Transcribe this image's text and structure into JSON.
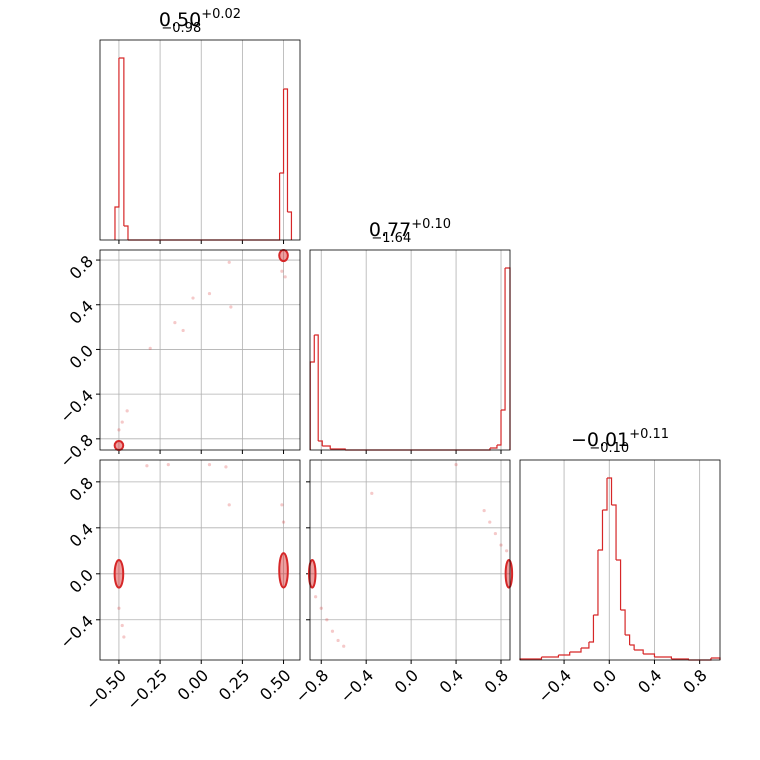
{
  "chart_data": [
    {
      "type": "histogram",
      "title": "0.50",
      "title_upper": "+0.02",
      "title_lower": "−0.98",
      "color": "#d62728",
      "bins": [
        -0.524,
        -0.5,
        -0.47,
        -0.445,
        0.476,
        0.5,
        0.524,
        0.548
      ],
      "counts": [
        33,
        182,
        14,
        0,
        67,
        151,
        28
      ],
      "xlim": [
        -0.615,
        0.6
      ],
      "ylim": [
        0,
        200
      ],
      "xticks": [
        -0.5,
        -0.25,
        0,
        0.25,
        0.5
      ],
      "show_xticklabels": false,
      "grid": true
    },
    {
      "type": "scatter",
      "color": "#d62728",
      "xlim": [
        -0.615,
        0.6
      ],
      "ylim": [
        -0.9,
        0.89
      ],
      "xticks": [
        -0.5,
        -0.25,
        0,
        0.25,
        0.5
      ],
      "show_xticklabels": false,
      "yticks": [
        {
          "value": -0.8,
          "label": "−0.8"
        },
        {
          "value": -0.4,
          "label": "−0.4"
        },
        {
          "value": 0,
          "label": "0.0"
        },
        0.4,
        0.8
      ],
      "show_yticklabels": true,
      "grid": true,
      "x": [
        -0.45,
        -0.48,
        -0.5,
        -0.05,
        0.05,
        -0.16,
        -0.11,
        -0.31,
        0.18,
        0.17,
        0.49,
        0.51
      ],
      "y": [
        -0.55,
        -0.65,
        -0.72,
        0.46,
        0.5,
        0.24,
        0.17,
        0.01,
        0.38,
        0.78,
        0.7,
        0.65
      ],
      "clusters": [
        {
          "x": -0.5,
          "y": -0.86,
          "sx": 0.02,
          "sy": 0.04
        },
        {
          "x": 0.5,
          "y": 0.84,
          "sx": 0.02,
          "sy": 0.05
        }
      ]
    },
    {
      "type": "histogram",
      "title": "0.77",
      "title_upper": "+0.10",
      "title_lower": "−1.64",
      "color": "#d62728",
      "bins": [
        -0.898,
        -0.862,
        -0.827,
        -0.791,
        -0.72,
        -0.587,
        0.702,
        0.764,
        0.8,
        0.836,
        0.88
      ],
      "counts": [
        88,
        115,
        9,
        4,
        1,
        0,
        2,
        5,
        40,
        182
      ],
      "xlim": [
        -0.9,
        0.88
      ],
      "ylim": [
        0,
        200
      ],
      "xticks": [
        -0.8,
        -0.4,
        0,
        0.4,
        0.8
      ],
      "show_xticklabels": false,
      "grid": true
    },
    {
      "type": "scatter",
      "color": "#d62728",
      "xlim": [
        -0.615,
        0.6
      ],
      "ylim": [
        -0.75,
        0.99
      ],
      "xticks": [
        {
          "value": -0.5,
          "label": "−0.50"
        },
        {
          "value": -0.25,
          "label": "−0.25"
        },
        {
          "value": 0,
          "label": "0.00"
        },
        {
          "value": 0.25,
          "label": "0.25"
        },
        {
          "value": 0.5,
          "label": "0.50"
        }
      ],
      "show_xticklabels": true,
      "yticks": [
        {
          "value": -0.4,
          "label": "−0.4"
        },
        {
          "value": 0,
          "label": "0.0"
        },
        0.4,
        0.8
      ],
      "show_yticklabels": true,
      "grid": true,
      "x": [
        -0.5,
        -0.48,
        -0.47,
        0.5,
        0.49,
        -0.33,
        -0.2,
        0.05,
        0.15,
        0.17
      ],
      "y": [
        -0.3,
        -0.45,
        -0.55,
        0.45,
        0.6,
        0.94,
        0.95,
        0.95,
        0.93,
        0.6
      ],
      "clusters": [
        {
          "x": -0.5,
          "y": 0,
          "sx": 0.02,
          "sy": 0.12
        },
        {
          "x": 0.5,
          "y": 0.03,
          "sx": 0.02,
          "sy": 0.15
        }
      ]
    },
    {
      "type": "scatter",
      "color": "#d62728",
      "xlim": [
        -0.9,
        0.88
      ],
      "ylim": [
        -0.75,
        0.99
      ],
      "xticks": [
        {
          "value": -0.8,
          "label": "−0.8"
        },
        {
          "value": -0.4,
          "label": "−0.4"
        },
        {
          "value": 0,
          "label": "0.0"
        },
        0.4,
        0.8
      ],
      "show_xticklabels": true,
      "yticks": [
        -0.4,
        0,
        0.4,
        0.8
      ],
      "show_yticklabels": false,
      "grid": true,
      "x": [
        -0.85,
        -0.8,
        -0.75,
        -0.7,
        -0.65,
        -0.6,
        0.65,
        0.7,
        0.75,
        0.8,
        0.85,
        -0.35,
        0.4
      ],
      "y": [
        -0.2,
        -0.3,
        -0.4,
        -0.5,
        -0.58,
        -0.63,
        0.55,
        0.45,
        0.35,
        0.25,
        0.2,
        0.7,
        0.95
      ],
      "clusters": [
        {
          "x": -0.88,
          "y": 0,
          "sx": 0.02,
          "sy": 0.12
        },
        {
          "x": 0.87,
          "y": 0,
          "sx": 0.02,
          "sy": 0.12
        }
      ]
    },
    {
      "type": "histogram",
      "title": "−0.01",
      "title_upper": "+0.11",
      "title_lower": "−0.10",
      "color": "#d62728",
      "bins": [
        -0.79,
        -0.6,
        -0.45,
        -0.35,
        -0.25,
        -0.18,
        -0.14,
        -0.1,
        -0.06,
        -0.02,
        0.02,
        0.06,
        0.1,
        0.14,
        0.18,
        0.22,
        0.3,
        0.4,
        0.55,
        0.7,
        0.9,
        0.98
      ],
      "counts": [
        1,
        3,
        5,
        8,
        12,
        18,
        45,
        110,
        150,
        182,
        155,
        100,
        50,
        25,
        15,
        10,
        6,
        3,
        1,
        0,
        2
      ],
      "xlim": [
        -0.79,
        0.98
      ],
      "ylim": [
        0,
        200
      ],
      "xticks": [
        {
          "value": -0.4,
          "label": "−0.4"
        },
        {
          "value": 0,
          "label": "0.0"
        },
        0.4,
        0.8
      ],
      "show_xticklabels": true,
      "grid": true
    }
  ]
}
